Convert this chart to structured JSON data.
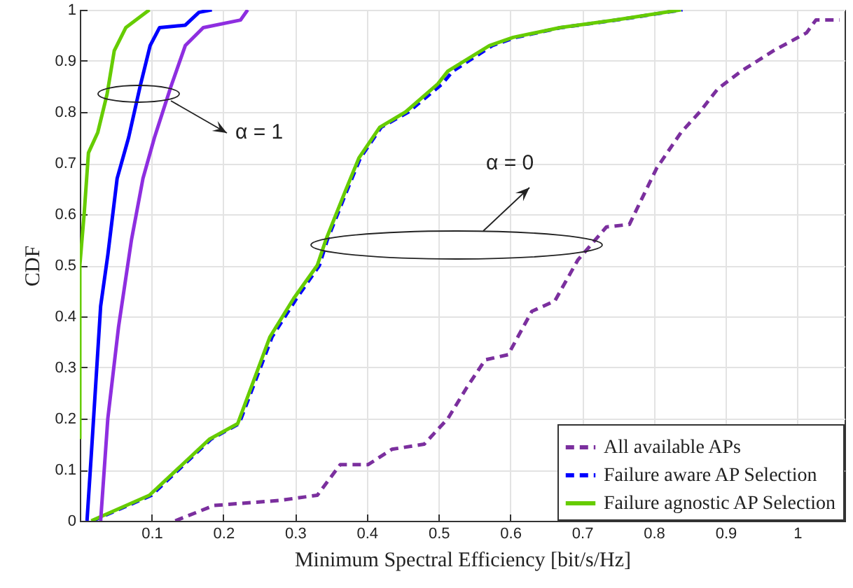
{
  "chart_data": {
    "type": "line",
    "xlabel": "Minimum Spectral Efficiency [bit/s/Hz]",
    "ylabel": "CDF",
    "xlim": [
      0,
      1.066
    ],
    "ylim": [
      0,
      1
    ],
    "xticks": [
      0.1,
      0.2,
      0.3,
      0.4,
      0.5,
      0.6,
      0.7,
      0.8,
      0.9,
      1
    ],
    "yticks": [
      0,
      0.1,
      0.2,
      0.3,
      0.4,
      0.5,
      0.6,
      0.7,
      0.8,
      0.9,
      1
    ],
    "grid": true,
    "legend": "bottom right",
    "marker": "none",
    "series": [
      {
        "name": "All available APs",
        "color": "#7b2f9e",
        "line_style": "dashed",
        "x": [
          0.133,
          0.187,
          0.279,
          0.331,
          0.363,
          0.402,
          0.435,
          0.48,
          0.513,
          0.539,
          0.565,
          0.597,
          0.63,
          0.662,
          0.694,
          0.734,
          0.766,
          0.804,
          0.838,
          0.864,
          0.889,
          0.922,
          0.967,
          1.013,
          1.026,
          1.059
        ],
        "values": [
          0,
          0.03,
          0.04,
          0.05,
          0.11,
          0.11,
          0.14,
          0.15,
          0.2,
          0.26,
          0.315,
          0.325,
          0.41,
          0.43,
          0.51,
          0.575,
          0.58,
          0.69,
          0.76,
          0.8,
          0.845,
          0.88,
          0.92,
          0.955,
          0.98,
          0.98
        ]
      },
      {
        "name": "Failure aware AP Selection",
        "color": "#0000ff",
        "line_style": "dashed",
        "x": [
          0.018,
          0.1,
          0.183,
          0.222,
          0.268,
          0.302,
          0.334,
          0.345,
          0.372,
          0.391,
          0.42,
          0.458,
          0.505,
          0.52,
          0.575,
          0.608,
          0.67,
          0.748,
          0.84
        ],
        "values": [
          0,
          0.05,
          0.16,
          0.19,
          0.36,
          0.435,
          0.5,
          0.55,
          0.645,
          0.71,
          0.77,
          0.8,
          0.855,
          0.88,
          0.93,
          0.946,
          0.965,
          0.98,
          1
        ]
      },
      {
        "name": "Failure agnostic AP Selection",
        "color": "#66cc00",
        "line_style": "solid",
        "x": [
          0.016,
          0.097,
          0.181,
          0.22,
          0.265,
          0.298,
          0.331,
          0.343,
          0.37,
          0.389,
          0.418,
          0.454,
          0.499,
          0.513,
          0.571,
          0.604,
          0.669,
          0.747,
          0.838
        ],
        "values": [
          0,
          0.05,
          0.16,
          0.19,
          0.36,
          0.435,
          0.5,
          0.55,
          0.645,
          0.71,
          0.77,
          0.8,
          0.855,
          0.88,
          0.93,
          0.946,
          0.965,
          0.98,
          1
        ]
      },
      {
        "color": "#8e2ee0",
        "line_style": "solid",
        "x": [
          0.029,
          0.039,
          0.054,
          0.072,
          0.088,
          0.104,
          0.127,
          0.147,
          0.172,
          0.224,
          0.234
        ],
        "values": [
          0,
          0.2,
          0.38,
          0.55,
          0.67,
          0.75,
          0.85,
          0.93,
          0.965,
          0.98,
          1
        ]
      },
      {
        "color": "#0000ff",
        "line_style": "solid",
        "x": [
          0.01,
          0.016,
          0.029,
          0.039,
          0.052,
          0.068,
          0.084,
          0.098,
          0.111,
          0.147,
          0.166,
          0.184
        ],
        "values": [
          0,
          0.13,
          0.42,
          0.52,
          0.67,
          0.75,
          0.85,
          0.93,
          0.965,
          0.97,
          0.995,
          1
        ]
      },
      {
        "color": "#66cc00",
        "line_style": "solid",
        "x": [
          0,
          0,
          0.006,
          0.012,
          0.025,
          0.038,
          0.048,
          0.064,
          0.097
        ],
        "values": [
          0.16,
          0.5,
          0.6,
          0.72,
          0.76,
          0.835,
          0.92,
          0.965,
          1
        ]
      }
    ],
    "annotations": [
      "α = 1",
      "α = 0"
    ]
  }
}
